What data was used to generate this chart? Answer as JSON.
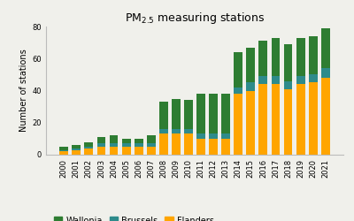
{
  "years": [
    "2000",
    "2001",
    "2002",
    "2003",
    "2004",
    "2005",
    "2006",
    "2007",
    "2008",
    "2009",
    "2010",
    "2011",
    "2012",
    "2013",
    "2014",
    "2015",
    "2016",
    "2017",
    "2018",
    "2019",
    "2020",
    "2021"
  ],
  "flanders": [
    2,
    3,
    4,
    5,
    5,
    5,
    5,
    5,
    13,
    13,
    13,
    10,
    10,
    10,
    38,
    40,
    44,
    44,
    41,
    44,
    45,
    48
  ],
  "brussels": [
    1,
    1,
    1,
    2,
    2,
    2,
    2,
    2,
    3,
    3,
    3,
    3,
    3,
    3,
    4,
    5,
    5,
    5,
    5,
    5,
    5,
    6
  ],
  "wallonia": [
    2,
    2,
    3,
    4,
    5,
    3,
    3,
    5,
    17,
    19,
    18,
    25,
    25,
    25,
    22,
    22,
    22,
    24,
    23,
    24,
    24,
    25
  ],
  "flanders_color": "#FFA500",
  "brussels_color": "#2E8B8B",
  "wallonia_color": "#2E7D32",
  "title": "PM$_{2.5}$ measuring stations",
  "ylabel": "Number of stations",
  "ylim": [
    0,
    80
  ],
  "yticks": [
    0,
    20,
    40,
    60,
    80
  ],
  "background_color": "#f0f0eb",
  "title_fontsize": 9,
  "axis_fontsize": 7,
  "tick_fontsize": 6,
  "legend_fontsize": 7
}
